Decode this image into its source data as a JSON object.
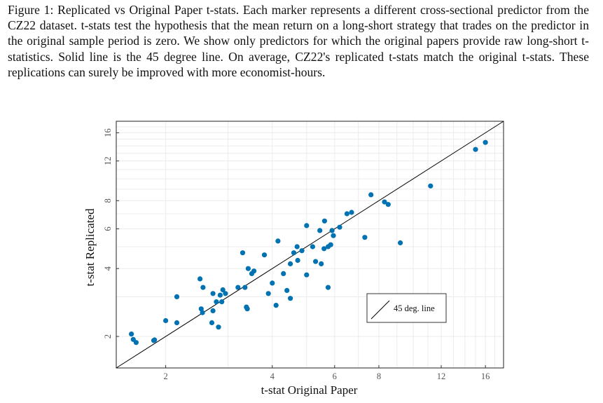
{
  "caption": {
    "label": "Figure 1:",
    "text": "Replicated vs Original Paper t-stats. Each marker represents a different cross-sectional predictor from the CZ22 dataset. t-stats test the hypothesis that the mean return on a long-short strategy that trades on the predictor in the original sample period is zero. We show only predictors for which the original papers provide raw long-short t-statistics. Solid line is the 45 degree line. On average, CZ22's replicated t-stats match the original t-stats. These replications can surely be improved with more economist-hours."
  },
  "chart_data": {
    "type": "scatter",
    "xlabel": "t-stat Original Paper",
    "ylabel": "t-stat Replicated",
    "x_scale": "log",
    "y_scale": "log",
    "xlim": [
      1.45,
      18.0
    ],
    "ylim": [
      1.45,
      18.0
    ],
    "x_ticks": [
      2,
      4,
      6,
      8,
      12,
      16
    ],
    "y_ticks": [
      2,
      4,
      6,
      8,
      12,
      16
    ],
    "grid": true,
    "marker_color": "#0072b2",
    "legend": {
      "position": "lower-right",
      "entries": [
        "45 deg. line"
      ]
    },
    "reference_line": {
      "name": "45 deg. line",
      "slope": 1
    },
    "points": [
      [
        1.6,
        2.05
      ],
      [
        1.62,
        1.94
      ],
      [
        1.65,
        1.88
      ],
      [
        1.85,
        1.92
      ],
      [
        1.86,
        1.93
      ],
      [
        2.0,
        2.35
      ],
      [
        2.15,
        2.3
      ],
      [
        2.15,
        3.0
      ],
      [
        2.52,
        2.65
      ],
      [
        2.54,
        2.55
      ],
      [
        2.5,
        3.6
      ],
      [
        2.55,
        3.3
      ],
      [
        2.7,
        2.3
      ],
      [
        2.72,
        2.6
      ],
      [
        2.72,
        3.1
      ],
      [
        2.78,
        2.85
      ],
      [
        2.82,
        2.2
      ],
      [
        2.85,
        3.05
      ],
      [
        2.88,
        2.85
      ],
      [
        2.9,
        3.22
      ],
      [
        2.95,
        3.1
      ],
      [
        3.2,
        3.3
      ],
      [
        3.35,
        3.3
      ],
      [
        3.38,
        2.7
      ],
      [
        3.4,
        2.65
      ],
      [
        3.42,
        4.0
      ],
      [
        3.5,
        3.8
      ],
      [
        3.55,
        3.9
      ],
      [
        3.9,
        3.1
      ],
      [
        4.0,
        3.45
      ],
      [
        4.1,
        2.75
      ],
      [
        4.15,
        5.3
      ],
      [
        3.3,
        4.7
      ],
      [
        3.8,
        4.6
      ],
      [
        4.3,
        3.8
      ],
      [
        4.4,
        3.2
      ],
      [
        4.5,
        4.2
      ],
      [
        4.5,
        2.95
      ],
      [
        4.6,
        4.7
      ],
      [
        4.72,
        4.35
      ],
      [
        4.7,
        5.0
      ],
      [
        4.85,
        4.8
      ],
      [
        5.0,
        3.75
      ],
      [
        5.0,
        6.2
      ],
      [
        5.2,
        5.0
      ],
      [
        5.3,
        4.3
      ],
      [
        5.45,
        5.9
      ],
      [
        5.5,
        4.2
      ],
      [
        5.6,
        4.9
      ],
      [
        5.62,
        6.5
      ],
      [
        5.75,
        3.3
      ],
      [
        5.75,
        5.0
      ],
      [
        5.85,
        5.1
      ],
      [
        5.9,
        5.9
      ],
      [
        5.95,
        5.6
      ],
      [
        6.2,
        6.1
      ],
      [
        6.5,
        7.0
      ],
      [
        6.7,
        7.1
      ],
      [
        7.3,
        5.5
      ],
      [
        7.6,
        8.5
      ],
      [
        8.3,
        7.9
      ],
      [
        8.5,
        7.7
      ],
      [
        9.2,
        5.2
      ],
      [
        11.2,
        9.3
      ],
      [
        15.0,
        13.5
      ],
      [
        16.0,
        14.5
      ]
    ]
  }
}
